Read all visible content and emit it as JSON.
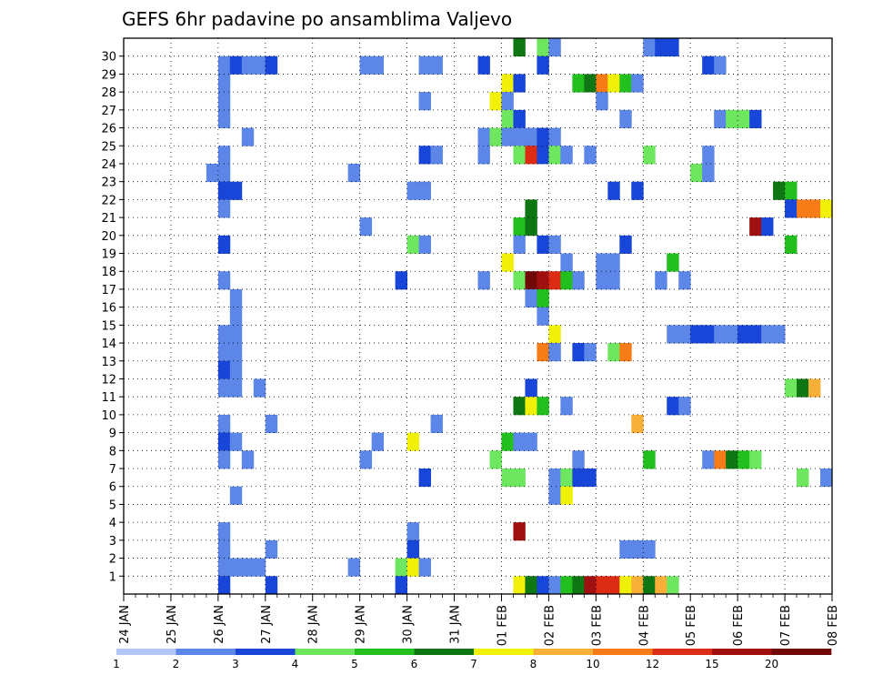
{
  "chart_data": {
    "type": "heatmap",
    "title": "GEFS 6hr padavine po ansamblima Valjevo",
    "x_tick_labels": [
      "24 JAN",
      "25 JAN",
      "26 JAN",
      "27 JAN",
      "28 JAN",
      "29 JAN",
      "30 JAN",
      "31 JAN",
      "01 FEB",
      "02 FEB",
      "03 FEB",
      "04 FEB",
      "05 FEB",
      "06 FEB",
      "07 FEB",
      "08 FEB"
    ],
    "y_tick_labels": [
      "1",
      "2",
      "3",
      "4",
      "5",
      "6",
      "7",
      "8",
      "9",
      "10",
      "11",
      "12",
      "13",
      "14",
      "15",
      "16",
      "17",
      "18",
      "19",
      "20",
      "21",
      "22",
      "23",
      "24",
      "25",
      "26",
      "27",
      "28",
      "29",
      "30"
    ],
    "steps_per_day": 4,
    "grid": "dotted",
    "legend_placement": "bottom",
    "colorbar": {
      "labels": [
        "1",
        "2",
        "3",
        "4",
        "5",
        "6",
        "7",
        "8",
        "10",
        "12",
        "15",
        "20"
      ],
      "colors": [
        "#b4c6f5",
        "#5c86e8",
        "#1846d8",
        "#6ee660",
        "#22bf1e",
        "#0e7612",
        "#f0f008",
        "#f8b038",
        "#f77b17",
        "#dc2c14",
        "#a01010",
        "#700808"
      ]
    },
    "cells": [
      [
        30,
        33,
        5
      ],
      [
        30,
        35,
        3
      ],
      [
        30,
        36,
        1
      ],
      [
        30,
        44,
        1
      ],
      [
        30,
        45,
        2
      ],
      [
        30,
        46,
        2
      ],
      [
        29,
        8,
        1
      ],
      [
        29,
        9,
        2
      ],
      [
        29,
        10,
        1
      ],
      [
        29,
        11,
        1
      ],
      [
        29,
        12,
        2
      ],
      [
        29,
        20,
        1
      ],
      [
        29,
        21,
        1
      ],
      [
        29,
        25,
        1
      ],
      [
        29,
        26,
        1
      ],
      [
        29,
        30,
        2
      ],
      [
        29,
        35,
        2
      ],
      [
        29,
        49,
        2
      ],
      [
        29,
        50,
        1
      ],
      [
        28,
        8,
        1
      ],
      [
        28,
        32,
        6
      ],
      [
        28,
        33,
        2
      ],
      [
        28,
        38,
        4
      ],
      [
        28,
        39,
        5
      ],
      [
        28,
        40,
        8
      ],
      [
        28,
        41,
        6
      ],
      [
        28,
        42,
        4
      ],
      [
        28,
        43,
        1
      ],
      [
        27,
        8,
        1
      ],
      [
        27,
        25,
        1
      ],
      [
        27,
        31,
        6
      ],
      [
        27,
        32,
        1
      ],
      [
        27,
        40,
        1
      ],
      [
        26,
        8,
        1
      ],
      [
        26,
        32,
        3
      ],
      [
        26,
        33,
        2
      ],
      [
        26,
        42,
        1
      ],
      [
        26,
        50,
        1
      ],
      [
        26,
        51,
        3
      ],
      [
        26,
        52,
        3
      ],
      [
        26,
        53,
        2
      ],
      [
        25,
        10,
        1
      ],
      [
        25,
        30,
        1
      ],
      [
        25,
        31,
        3
      ],
      [
        25,
        32,
        1
      ],
      [
        25,
        33,
        1
      ],
      [
        25,
        34,
        1
      ],
      [
        25,
        35,
        2
      ],
      [
        25,
        36,
        1
      ],
      [
        24,
        8,
        1
      ],
      [
        24,
        25,
        2
      ],
      [
        24,
        26,
        1
      ],
      [
        24,
        30,
        1
      ],
      [
        24,
        33,
        3
      ],
      [
        24,
        34,
        9
      ],
      [
        24,
        35,
        2
      ],
      [
        24,
        36,
        3
      ],
      [
        24,
        37,
        1
      ],
      [
        24,
        39,
        1
      ],
      [
        24,
        44,
        3
      ],
      [
        24,
        49,
        1
      ],
      [
        23,
        7,
        1
      ],
      [
        23,
        8,
        1
      ],
      [
        23,
        19,
        1
      ],
      [
        23,
        48,
        3
      ],
      [
        23,
        49,
        1
      ],
      [
        22,
        8,
        2
      ],
      [
        22,
        9,
        2
      ],
      [
        22,
        24,
        1
      ],
      [
        22,
        25,
        1
      ],
      [
        22,
        41,
        2
      ],
      [
        22,
        43,
        2
      ],
      [
        22,
        55,
        5
      ],
      [
        22,
        56,
        4
      ],
      [
        21,
        8,
        1
      ],
      [
        21,
        34,
        5
      ],
      [
        21,
        56,
        2
      ],
      [
        21,
        57,
        8
      ],
      [
        21,
        58,
        8
      ],
      [
        21,
        59,
        6
      ],
      [
        20,
        20,
        1
      ],
      [
        20,
        33,
        4
      ],
      [
        20,
        34,
        5
      ],
      [
        20,
        53,
        10
      ],
      [
        20,
        54,
        2
      ],
      [
        19,
        8,
        2
      ],
      [
        19,
        24,
        3
      ],
      [
        19,
        25,
        1
      ],
      [
        19,
        33,
        1
      ],
      [
        19,
        35,
        2
      ],
      [
        19,
        36,
        1
      ],
      [
        19,
        42,
        2
      ],
      [
        19,
        56,
        4
      ],
      [
        18,
        32,
        6
      ],
      [
        18,
        37,
        1
      ],
      [
        18,
        40,
        1
      ],
      [
        18,
        41,
        1
      ],
      [
        18,
        46,
        4
      ],
      [
        17,
        8,
        1
      ],
      [
        17,
        23,
        2
      ],
      [
        17,
        30,
        1
      ],
      [
        17,
        33,
        3
      ],
      [
        17,
        34,
        11
      ],
      [
        17,
        35,
        10
      ],
      [
        17,
        36,
        9
      ],
      [
        17,
        37,
        4
      ],
      [
        17,
        38,
        1
      ],
      [
        17,
        40,
        1
      ],
      [
        17,
        41,
        1
      ],
      [
        17,
        45,
        1
      ],
      [
        17,
        47,
        1
      ],
      [
        16,
        9,
        1
      ],
      [
        16,
        34,
        1
      ],
      [
        16,
        35,
        4
      ],
      [
        15,
        9,
        1
      ],
      [
        15,
        35,
        1
      ],
      [
        14,
        8,
        1
      ],
      [
        14,
        9,
        1
      ],
      [
        14,
        36,
        6
      ],
      [
        14,
        46,
        1
      ],
      [
        14,
        47,
        1
      ],
      [
        14,
        48,
        2
      ],
      [
        14,
        49,
        2
      ],
      [
        14,
        50,
        1
      ],
      [
        14,
        51,
        1
      ],
      [
        14,
        52,
        2
      ],
      [
        14,
        53,
        2
      ],
      [
        14,
        54,
        1
      ],
      [
        14,
        55,
        1
      ],
      [
        13,
        8,
        1
      ],
      [
        13,
        9,
        1
      ],
      [
        13,
        35,
        8
      ],
      [
        13,
        36,
        1
      ],
      [
        13,
        38,
        2
      ],
      [
        13,
        39,
        1
      ],
      [
        13,
        41,
        3
      ],
      [
        13,
        42,
        8
      ],
      [
        12,
        8,
        2
      ],
      [
        12,
        9,
        1
      ],
      [
        11,
        8,
        1
      ],
      [
        11,
        9,
        1
      ],
      [
        11,
        11,
        1
      ],
      [
        11,
        34,
        2
      ],
      [
        11,
        56,
        3
      ],
      [
        11,
        57,
        5
      ],
      [
        11,
        58,
        7
      ],
      [
        10,
        33,
        5
      ],
      [
        10,
        34,
        6
      ],
      [
        10,
        35,
        4
      ],
      [
        10,
        37,
        1
      ],
      [
        10,
        46,
        2
      ],
      [
        10,
        47,
        1
      ],
      [
        9,
        8,
        1
      ],
      [
        9,
        12,
        1
      ],
      [
        9,
        26,
        1
      ],
      [
        9,
        43,
        7
      ],
      [
        8,
        8,
        2
      ],
      [
        8,
        9,
        1
      ],
      [
        8,
        21,
        1
      ],
      [
        8,
        24,
        6
      ],
      [
        8,
        32,
        4
      ],
      [
        8,
        33,
        1
      ],
      [
        8,
        34,
        1
      ],
      [
        7,
        8,
        1
      ],
      [
        7,
        10,
        1
      ],
      [
        7,
        20,
        1
      ],
      [
        7,
        31,
        3
      ],
      [
        7,
        38,
        1
      ],
      [
        7,
        44,
        4
      ],
      [
        7,
        49,
        1
      ],
      [
        7,
        50,
        8
      ],
      [
        7,
        51,
        5
      ],
      [
        7,
        52,
        4
      ],
      [
        7,
        53,
        3
      ],
      [
        6,
        25,
        2
      ],
      [
        6,
        32,
        3
      ],
      [
        6,
        33,
        3
      ],
      [
        6,
        36,
        1
      ],
      [
        6,
        37,
        3
      ],
      [
        6,
        38,
        2
      ],
      [
        6,
        39,
        2
      ],
      [
        6,
        57,
        3
      ],
      [
        6,
        59,
        1
      ],
      [
        5,
        9,
        1
      ],
      [
        5,
        36,
        1
      ],
      [
        5,
        37,
        6
      ],
      [
        3,
        8,
        1
      ],
      [
        3,
        24,
        1
      ],
      [
        3,
        33,
        10
      ],
      [
        2,
        8,
        1
      ],
      [
        2,
        12,
        1
      ],
      [
        2,
        24,
        2
      ],
      [
        2,
        42,
        1
      ],
      [
        2,
        43,
        1
      ],
      [
        2,
        44,
        1
      ],
      [
        1,
        8,
        1
      ],
      [
        1,
        9,
        1
      ],
      [
        1,
        10,
        1
      ],
      [
        1,
        11,
        1
      ],
      [
        1,
        19,
        1
      ],
      [
        1,
        23,
        3
      ],
      [
        1,
        24,
        6
      ],
      [
        1,
        25,
        1
      ],
      [
        0,
        8,
        2
      ],
      [
        0,
        12,
        2
      ],
      [
        0,
        23,
        2
      ],
      [
        0,
        33,
        6
      ],
      [
        0,
        34,
        5
      ],
      [
        0,
        35,
        2
      ],
      [
        0,
        36,
        1
      ],
      [
        0,
        37,
        4
      ],
      [
        0,
        38,
        5
      ],
      [
        0,
        39,
        10
      ],
      [
        0,
        40,
        9
      ],
      [
        0,
        41,
        9
      ],
      [
        0,
        42,
        6
      ],
      [
        0,
        43,
        7
      ],
      [
        0,
        44,
        5
      ],
      [
        0,
        45,
        7
      ],
      [
        0,
        46,
        3
      ]
    ]
  }
}
